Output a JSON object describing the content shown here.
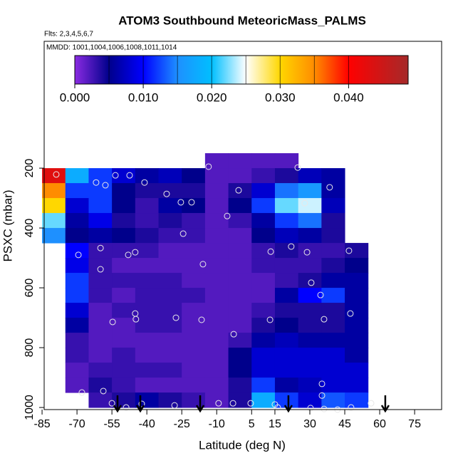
{
  "chart_data": {
    "type": "heatmap",
    "title": "ATOM3 Southbound MeteoricMass_PALMS",
    "subtitle": "Flts: 2,3,4,5,6,7",
    "annotation": "MMDD: 1001,1004,1006,1008,1011,1014",
    "x_label": "Latitude (deg N)",
    "y_label": "PSXC (mbar)",
    "xlim": [
      -84.1,
      86.6
    ],
    "ylim": [
      1007,
      -224
    ],
    "xticks": [
      -85,
      -70,
      -55,
      -40,
      -25,
      -10,
      5,
      15,
      30,
      45,
      60,
      75
    ],
    "yticks": [
      200,
      400,
      600,
      800,
      1000
    ],
    "x_bins": [
      -85,
      -75,
      -65,
      -55,
      -45,
      -35,
      -25,
      -15,
      -5,
      5,
      15,
      25,
      35,
      45,
      55
    ],
    "y_bins": [
      150,
      200,
      250,
      300,
      350,
      400,
      450,
      500,
      550,
      600,
      650,
      700,
      750,
      800,
      850,
      900,
      950,
      1000
    ],
    "values": [
      [
        null,
        null,
        null,
        null,
        null,
        null,
        null,
        0.002,
        0.002,
        0.002,
        0.002,
        null,
        null,
        null
      ],
      [
        0.043,
        0.018,
        0.012,
        0.008,
        0.006,
        0.007,
        0.005,
        0.002,
        0.002,
        0.003,
        0.004,
        0.007,
        0.006,
        null
      ],
      [
        0.035,
        0.012,
        0.012,
        0.005,
        0.004,
        0.004,
        0.004,
        0.002,
        0.004,
        0.008,
        0.014,
        0.016,
        0.006,
        null
      ],
      [
        0.03,
        0.008,
        0.012,
        0.005,
        0.003,
        0.006,
        0.005,
        0.002,
        0.005,
        0.012,
        0.022,
        0.024,
        0.007,
        null
      ],
      [
        0.022,
        0.006,
        0.009,
        0.004,
        0.003,
        0.004,
        0.003,
        0.002,
        0.003,
        0.006,
        0.012,
        0.014,
        0.004,
        null
      ],
      [
        0.015,
        0.005,
        0.006,
        0.005,
        0.004,
        0.003,
        0.003,
        0.002,
        0.002,
        0.005,
        0.007,
        0.006,
        0.004,
        null
      ],
      [
        null,
        0.01,
        0.003,
        0.003,
        0.003,
        0.002,
        0.002,
        0.002,
        0.002,
        0.003,
        0.004,
        0.003,
        0.003,
        0.004
      ],
      [
        null,
        0.009,
        0.003,
        0.002,
        0.002,
        0.002,
        0.002,
        0.002,
        0.002,
        0.003,
        0.003,
        0.003,
        0.004,
        0.005
      ],
      [
        null,
        0.012,
        0.003,
        0.003,
        0.003,
        0.003,
        0.002,
        0.002,
        0.002,
        0.002,
        0.003,
        0.004,
        0.006,
        0.006
      ],
      [
        null,
        0.012,
        0.003,
        0.002,
        0.003,
        0.003,
        0.003,
        0.002,
        0.002,
        0.002,
        0.006,
        0.01,
        0.012,
        0.006
      ],
      [
        null,
        0.008,
        0.002,
        0.003,
        0.003,
        0.003,
        0.002,
        0.002,
        0.002,
        0.003,
        0.004,
        0.004,
        0.004,
        0.006
      ],
      [
        null,
        0.006,
        0.002,
        0.002,
        0.003,
        0.003,
        0.002,
        0.002,
        0.002,
        0.004,
        0.005,
        0.004,
        0.004,
        0.006
      ],
      [
        null,
        0.003,
        0.002,
        0.002,
        0.002,
        0.002,
        0.002,
        0.002,
        0.003,
        0.006,
        0.007,
        0.006,
        0.006,
        0.006
      ],
      [
        null,
        0.003,
        0.002,
        0.003,
        0.002,
        0.002,
        0.002,
        0.002,
        0.005,
        0.008,
        0.008,
        0.008,
        0.008,
        0.006
      ],
      [
        null,
        0.002,
        0.003,
        0.003,
        0.003,
        0.003,
        0.002,
        0.002,
        0.005,
        0.008,
        0.008,
        0.008,
        0.008,
        0.008
      ],
      [
        null,
        0.002,
        0.004,
        0.003,
        0.002,
        0.002,
        0.002,
        0.002,
        0.004,
        0.012,
        0.006,
        0.007,
        0.008,
        0.008
      ],
      [
        null,
        null,
        0.003,
        0.004,
        0.006,
        0.004,
        0.003,
        0.002,
        0.004,
        0.018,
        0.012,
        0.008,
        0.013,
        0.012
      ]
    ],
    "colorscale": [
      [
        0,
        "#8a2be2"
      ],
      [
        0.005,
        "#00008b"
      ],
      [
        0.01,
        "#0000ff"
      ],
      [
        0.015,
        "#1e90ff"
      ],
      [
        0.02,
        "#00bfff"
      ],
      [
        0.025,
        "#ffffff"
      ],
      [
        0.03,
        "#ffd700"
      ],
      [
        0.035,
        "#ff8c00"
      ],
      [
        0.04,
        "#ff0000"
      ],
      [
        0.0487,
        "#a52a2a"
      ]
    ],
    "colorbar": {
      "lim": [
        0,
        0.0487
      ],
      "ticks": [
        {
          "value": 0,
          "label": "0.000"
        },
        {
          "value": 0.01,
          "label": "0.010"
        },
        {
          "value": 0.02,
          "label": "0.020"
        },
        {
          "value": 0.03,
          "label": "0.030"
        },
        {
          "value": 0.04,
          "label": "0.040"
        }
      ]
    },
    "points": {
      "x": [
        -78.9,
        -61.8,
        -57.8,
        -53.5,
        -47.4,
        -41.0,
        -31.5,
        -25.4,
        -20.8,
        -13.5,
        -0.6,
        -5.5,
        24.8,
        38.5,
        27.8,
        -24.4,
        22.0,
        13.2,
        28.8,
        46.8,
        -69.4,
        -59.9,
        -48.0,
        -45.0,
        -15.9,
        -59.9,
        30.6,
        34.6,
        -45.0,
        -44.7,
        -27.5,
        -16.5,
        12.9,
        36.1,
        47.4,
        -54.7,
        -2.7,
        -67.9,
        -58.7,
        35.2,
        35.2,
        -55.0,
        -48.9,
        -42.2,
        -28.1,
        -9.2,
        -3.0,
        4.6,
        15.0,
        16.2,
        30.3,
        36.1,
        41.9,
        47.7,
        56.3
      ],
      "y": [
        221,
        248,
        257,
        224,
        224,
        248,
        286,
        314,
        314,
        195,
        274,
        360,
        198,
        264,
        317,
        419,
        462,
        479,
        481,
        476,
        490,
        467,
        490,
        481,
        521,
        538,
        583,
        624,
        686,
        705,
        700,
        707,
        707,
        705,
        686,
        714,
        755,
        950,
        945,
        921,
        960,
        986,
        1000,
        988,
        993,
        986,
        986,
        986,
        990,
        1000,
        1002,
        1005,
        1007,
        1000,
        986
      ],
      "color": "#e8e8e8"
    },
    "arrows_x": [
      -52.6,
      -42.8,
      -17.1,
      20.8,
      62.4
    ]
  }
}
